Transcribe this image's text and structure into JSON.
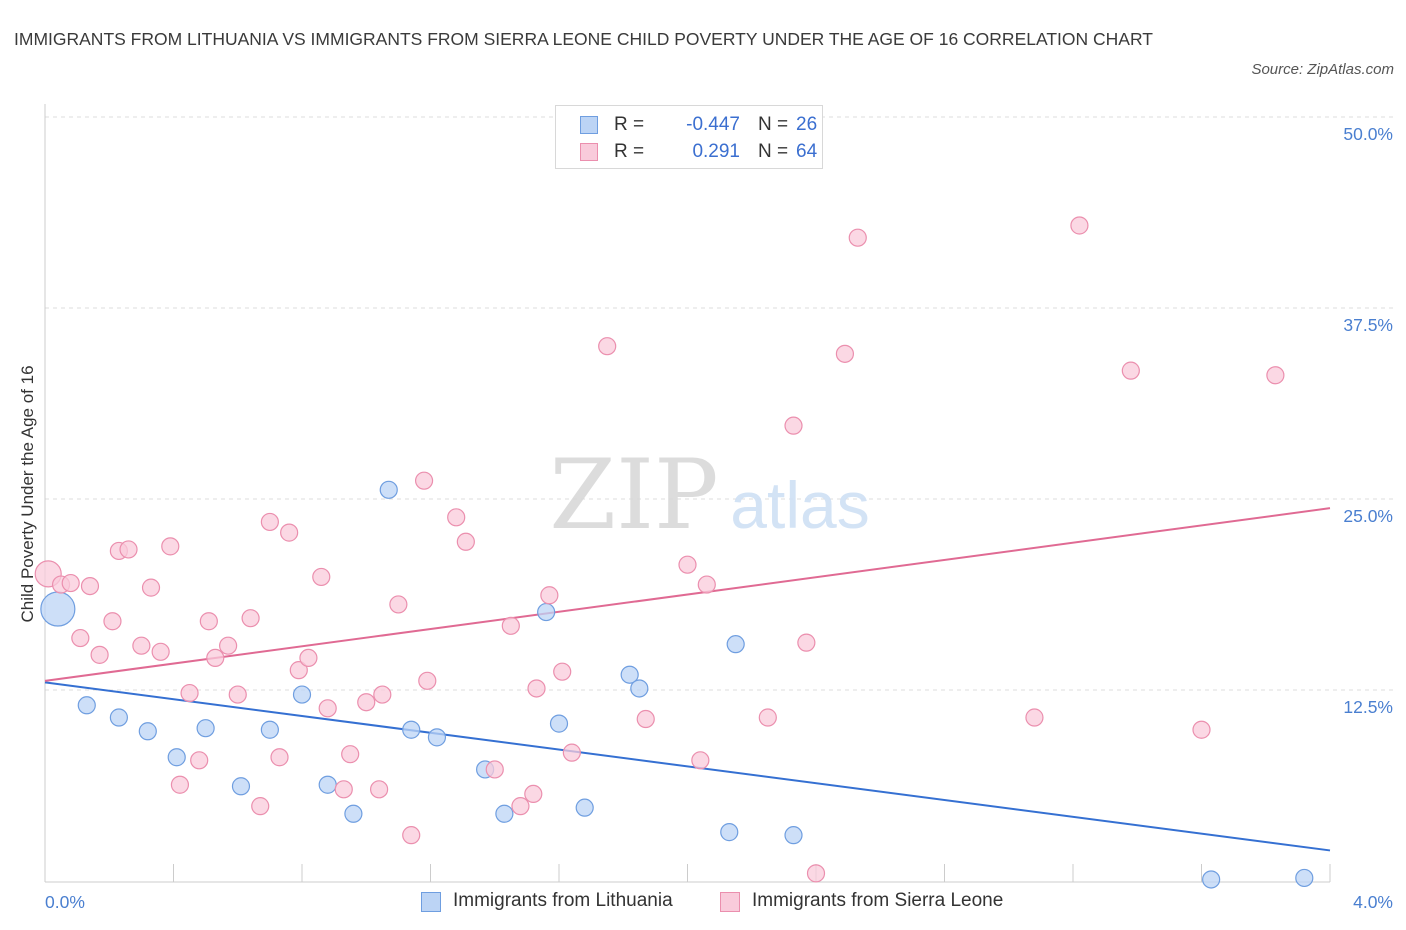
{
  "title": "IMMIGRANTS FROM LITHUANIA VS IMMIGRANTS FROM SIERRA LEONE CHILD POVERTY UNDER THE AGE OF 16 CORRELATION CHART",
  "source": "Source: ZipAtlas.com",
  "watermark": {
    "zip": "ZIP",
    "atlas": "atlas"
  },
  "legend": {
    "rows": [
      {
        "r_label": "R =",
        "r_value": "-0.447",
        "n_label": "N =",
        "n_value": "26"
      },
      {
        "r_label": "R =",
        "r_value": "0.291",
        "n_label": "N =",
        "n_value": "64"
      }
    ]
  },
  "colors": {
    "lithuania_fill": "#bcd4f5",
    "lithuania_stroke": "#6f9ee0",
    "lithuania_line": "#3570d2",
    "sierra_fill": "#f9cbdb",
    "sierra_stroke": "#eb8fae",
    "sierra_line": "#e06a93",
    "tick_text": "#4a7fd0",
    "grid": "#dddddd"
  },
  "chart_data": {
    "type": "scatter",
    "title": "IMMIGRANTS FROM LITHUANIA VS IMMIGRANTS FROM SIERRA LEONE CHILD POVERTY UNDER THE AGE OF 16 CORRELATION CHART",
    "xlabel": "",
    "ylabel": "Child Poverty Under the Age of 16",
    "xlim": [
      0,
      4.0
    ],
    "ylim": [
      0,
      50
    ],
    "x_tick_labels": [
      "0.0%",
      "4.0%"
    ],
    "y_ticks": [
      12.5,
      25.0,
      37.5,
      50.0
    ],
    "y_tick_labels": [
      "12.5%",
      "25.0%",
      "37.5%",
      "50.0%"
    ],
    "grid": true,
    "legend_position": "bottom",
    "series": [
      {
        "name": "Immigrants from Lithuania",
        "trend": {
          "x": [
            0,
            4.0
          ],
          "y": [
            13.0,
            2.0
          ]
        },
        "points": [
          {
            "x": 0.04,
            "y": 17.8,
            "s": 3
          },
          {
            "x": 0.13,
            "y": 11.5
          },
          {
            "x": 0.23,
            "y": 10.7
          },
          {
            "x": 0.32,
            "y": 9.8
          },
          {
            "x": 0.41,
            "y": 8.1
          },
          {
            "x": 0.5,
            "y": 10.0
          },
          {
            "x": 0.61,
            "y": 6.2
          },
          {
            "x": 0.7,
            "y": 9.9
          },
          {
            "x": 0.8,
            "y": 12.2
          },
          {
            "x": 0.88,
            "y": 6.3
          },
          {
            "x": 0.96,
            "y": 4.4
          },
          {
            "x": 1.07,
            "y": 25.6
          },
          {
            "x": 1.14,
            "y": 9.9
          },
          {
            "x": 1.22,
            "y": 9.4
          },
          {
            "x": 1.37,
            "y": 7.3
          },
          {
            "x": 1.43,
            "y": 4.4
          },
          {
            "x": 1.56,
            "y": 17.6
          },
          {
            "x": 1.6,
            "y": 10.3
          },
          {
            "x": 1.68,
            "y": 4.8
          },
          {
            "x": 1.82,
            "y": 13.5
          },
          {
            "x": 1.85,
            "y": 12.6
          },
          {
            "x": 2.13,
            "y": 3.2
          },
          {
            "x": 2.15,
            "y": 15.5
          },
          {
            "x": 2.33,
            "y": 3.0
          },
          {
            "x": 3.63,
            "y": 0.1
          },
          {
            "x": 3.92,
            "y": 0.2
          }
        ]
      },
      {
        "name": "Immigrants from Sierra Leone",
        "trend": {
          "x": [
            0,
            4.0
          ],
          "y": [
            13.1,
            24.4
          ]
        },
        "points": [
          {
            "x": 0.01,
            "y": 20.1,
            "s": 2
          },
          {
            "x": 0.05,
            "y": 19.4
          },
          {
            "x": 0.08,
            "y": 19.5
          },
          {
            "x": 0.14,
            "y": 19.3
          },
          {
            "x": 0.11,
            "y": 15.9
          },
          {
            "x": 0.17,
            "y": 14.8
          },
          {
            "x": 0.21,
            "y": 17.0
          },
          {
            "x": 0.23,
            "y": 21.6
          },
          {
            "x": 0.26,
            "y": 21.7
          },
          {
            "x": 0.3,
            "y": 15.4
          },
          {
            "x": 0.33,
            "y": 19.2
          },
          {
            "x": 0.36,
            "y": 15.0
          },
          {
            "x": 0.39,
            "y": 21.9
          },
          {
            "x": 0.42,
            "y": 6.3
          },
          {
            "x": 0.45,
            "y": 12.3
          },
          {
            "x": 0.48,
            "y": 7.9
          },
          {
            "x": 0.51,
            "y": 17.0
          },
          {
            "x": 0.53,
            "y": 14.6
          },
          {
            "x": 0.57,
            "y": 15.4
          },
          {
            "x": 0.6,
            "y": 12.2
          },
          {
            "x": 0.64,
            "y": 17.2
          },
          {
            "x": 0.67,
            "y": 4.9
          },
          {
            "x": 0.7,
            "y": 23.5
          },
          {
            "x": 0.73,
            "y": 8.1
          },
          {
            "x": 0.76,
            "y": 22.8
          },
          {
            "x": 0.79,
            "y": 13.8
          },
          {
            "x": 0.82,
            "y": 14.6
          },
          {
            "x": 0.86,
            "y": 19.9
          },
          {
            "x": 0.88,
            "y": 11.3
          },
          {
            "x": 0.93,
            "y": 6.0
          },
          {
            "x": 0.95,
            "y": 8.3
          },
          {
            "x": 1.0,
            "y": 11.7
          },
          {
            "x": 1.05,
            "y": 12.2
          },
          {
            "x": 1.04,
            "y": 6.0
          },
          {
            "x": 1.1,
            "y": 18.1
          },
          {
            "x": 1.14,
            "y": 3.0
          },
          {
            "x": 1.18,
            "y": 26.2
          },
          {
            "x": 1.19,
            "y": 13.1
          },
          {
            "x": 1.28,
            "y": 23.8
          },
          {
            "x": 1.31,
            "y": 22.2
          },
          {
            "x": 1.4,
            "y": 7.3
          },
          {
            "x": 1.45,
            "y": 16.7
          },
          {
            "x": 1.48,
            "y": 4.9
          },
          {
            "x": 1.52,
            "y": 5.7
          },
          {
            "x": 1.53,
            "y": 12.6
          },
          {
            "x": 1.57,
            "y": 18.7
          },
          {
            "x": 1.61,
            "y": 13.7
          },
          {
            "x": 1.64,
            "y": 8.4
          },
          {
            "x": 1.75,
            "y": 35.0
          },
          {
            "x": 1.87,
            "y": 10.6
          },
          {
            "x": 2.0,
            "y": 20.7
          },
          {
            "x": 2.04,
            "y": 7.9
          },
          {
            "x": 2.06,
            "y": 19.4
          },
          {
            "x": 2.25,
            "y": 10.7
          },
          {
            "x": 2.33,
            "y": 29.8
          },
          {
            "x": 2.37,
            "y": 15.6
          },
          {
            "x": 2.4,
            "y": 0.5
          },
          {
            "x": 2.49,
            "y": 34.5
          },
          {
            "x": 2.53,
            "y": 42.1
          },
          {
            "x": 3.08,
            "y": 10.7
          },
          {
            "x": 3.22,
            "y": 42.9
          },
          {
            "x": 3.38,
            "y": 33.4
          },
          {
            "x": 3.6,
            "y": 9.9
          },
          {
            "x": 3.83,
            "y": 33.1
          }
        ]
      }
    ]
  }
}
